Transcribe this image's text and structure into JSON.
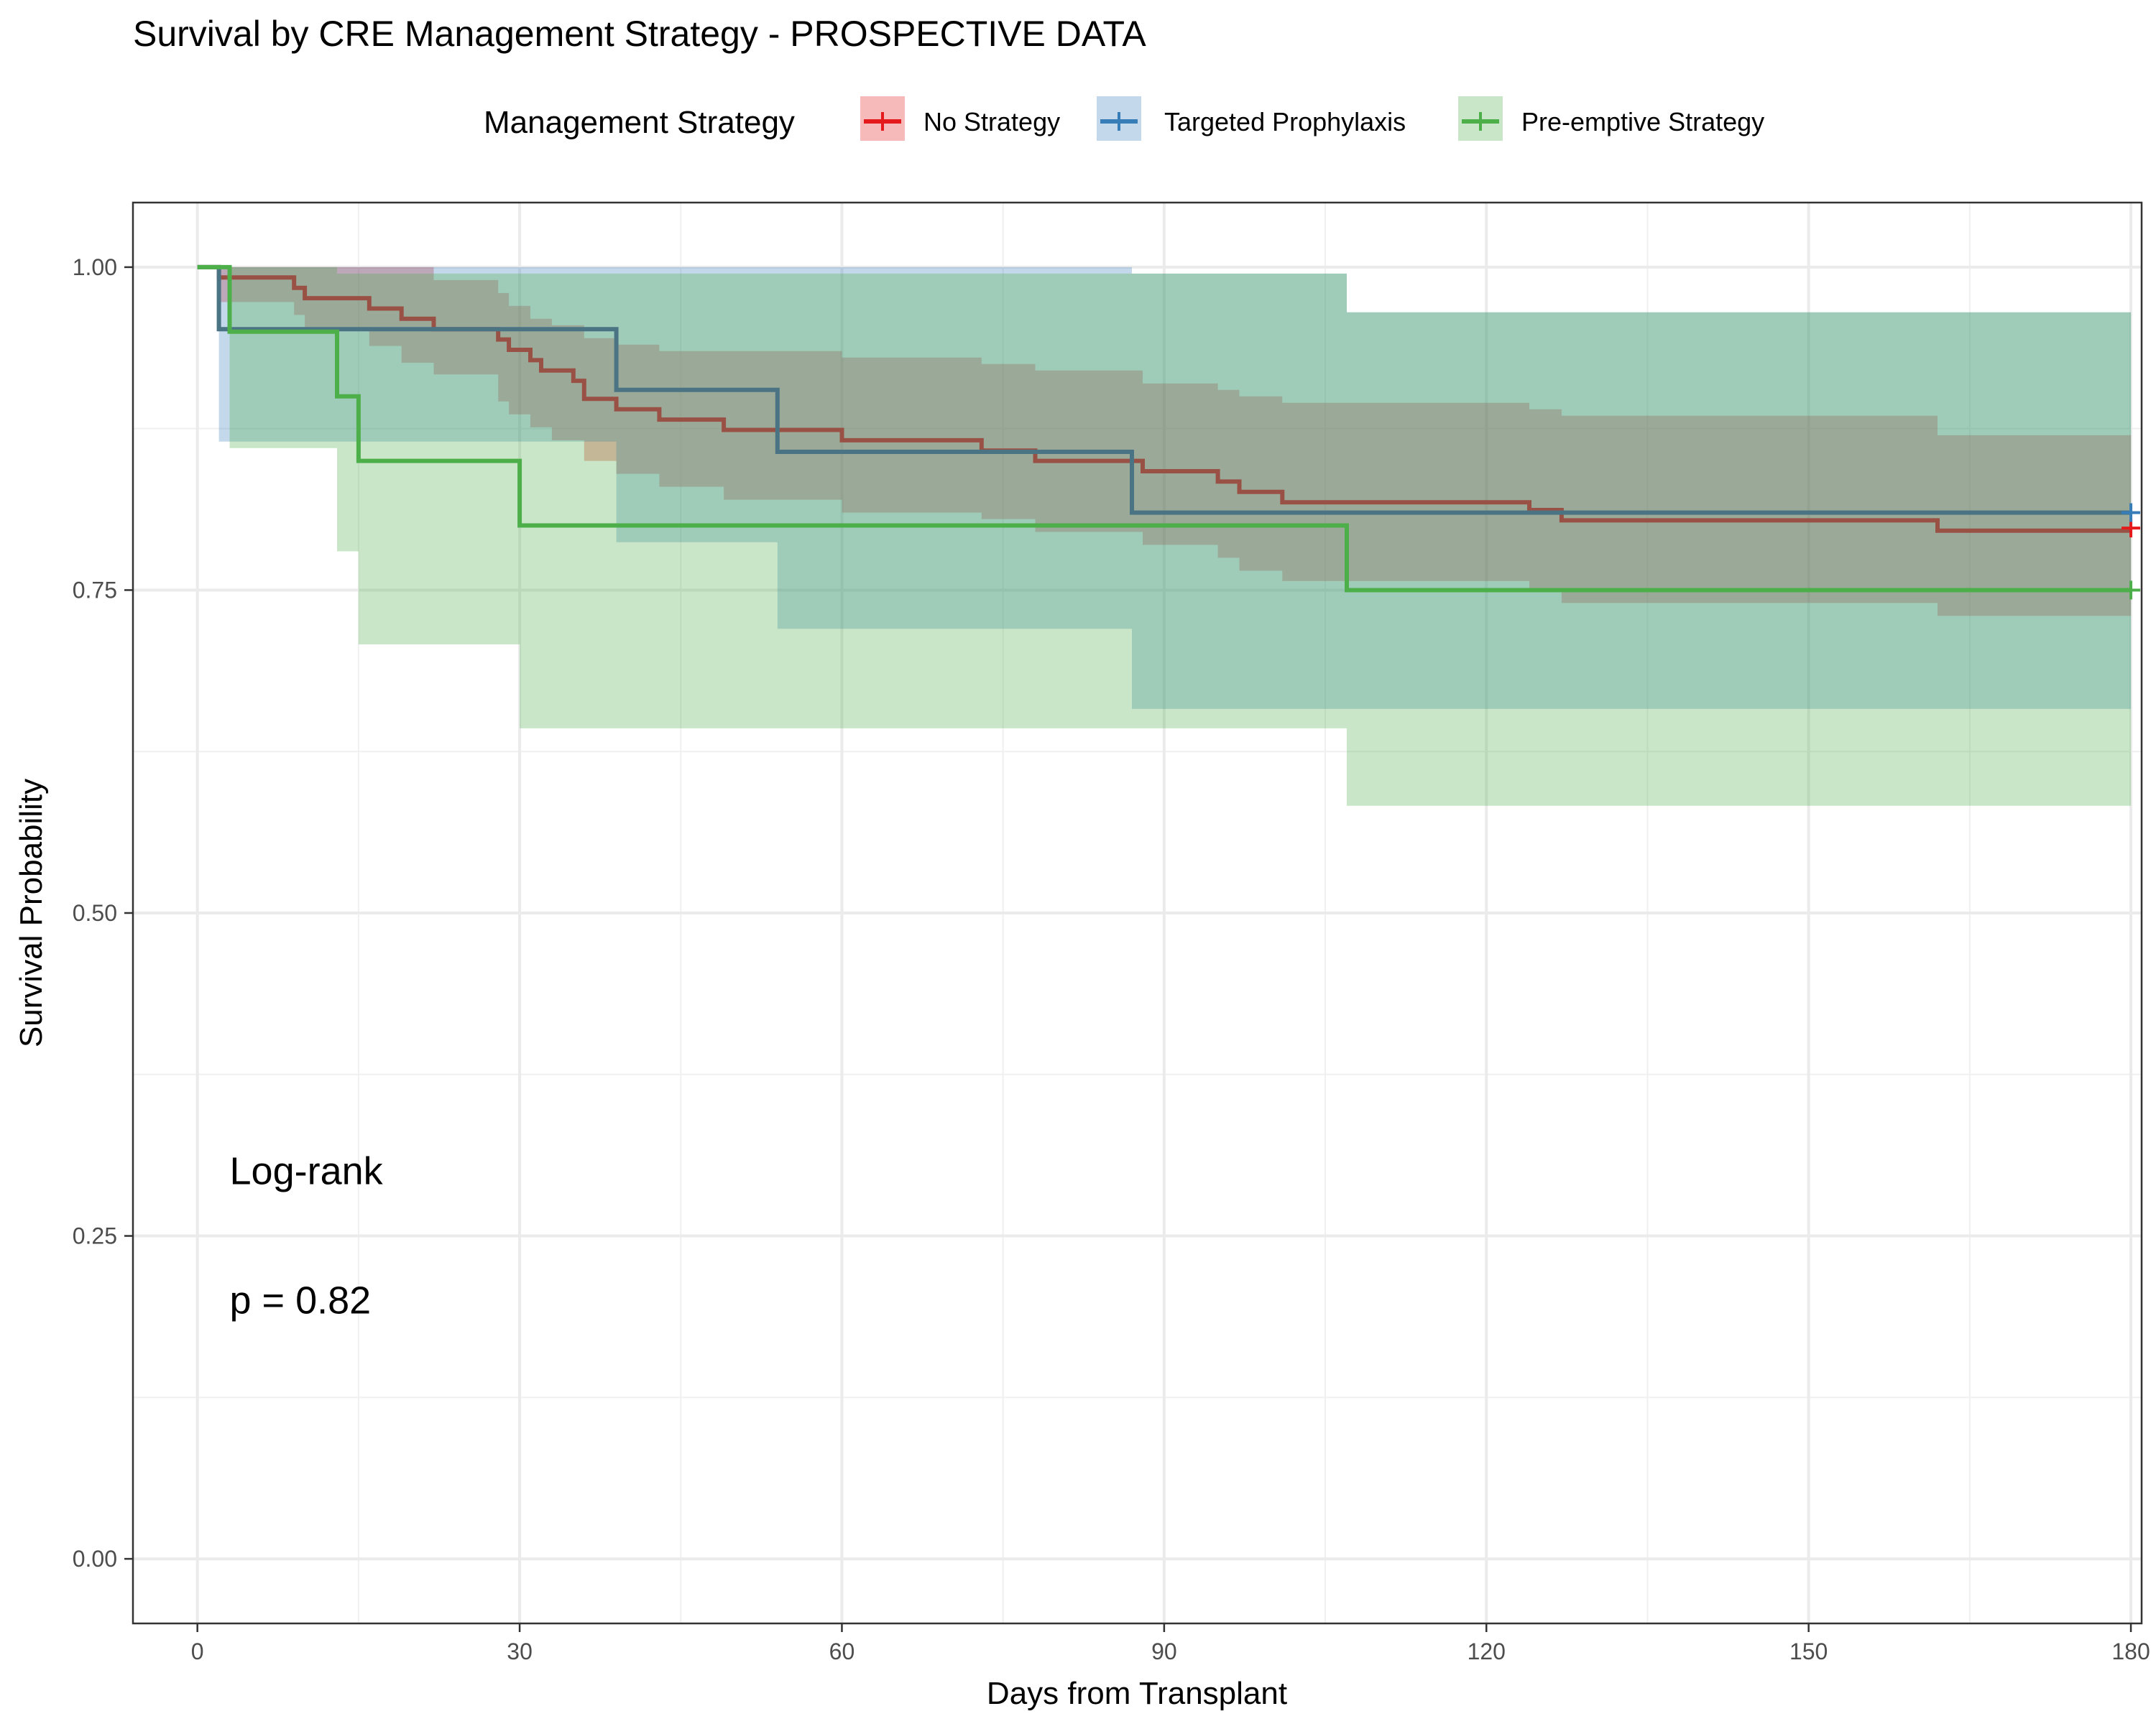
{
  "chart_data": {
    "type": "line",
    "subtype": "kaplan-meier step curves with confidence bands",
    "title": "Survival by CRE Management Strategy - PROSPECTIVE DATA",
    "xlabel": "Days from Transplant",
    "ylabel": "Survival Probability",
    "xlim": [
      -6,
      181
    ],
    "ylim": [
      -0.05,
      1.05
    ],
    "x_ticks": [
      0,
      30,
      60,
      90,
      120,
      150,
      180
    ],
    "x_tick_labels": [
      "0",
      "30",
      "60",
      "90",
      "120",
      "150",
      "180"
    ],
    "y_ticks": [
      0,
      0.25,
      0.5,
      0.75,
      1.0
    ],
    "y_tick_labels": [
      "0.00",
      "0.25",
      "0.50",
      "0.75",
      "1.00"
    ],
    "grid": true,
    "legend": {
      "title": "Management Strategy",
      "position": "top"
    },
    "series": [
      {
        "name": "No Strategy",
        "color": "#E41A1C",
        "line_color": "#9A5145",
        "steps": [
          [
            0,
            1.0
          ],
          [
            2,
            0.992
          ],
          [
            9,
            0.984
          ],
          [
            10,
            0.976
          ],
          [
            16,
            0.968
          ],
          [
            19,
            0.96
          ],
          [
            22,
            0.952
          ],
          [
            28,
            0.944
          ],
          [
            29,
            0.936
          ],
          [
            31,
            0.928
          ],
          [
            32,
            0.92
          ],
          [
            35,
            0.912
          ],
          [
            36,
            0.898
          ],
          [
            39,
            0.89
          ],
          [
            43,
            0.882
          ],
          [
            49,
            0.874
          ],
          [
            55,
            0.874
          ],
          [
            60,
            0.866
          ],
          [
            73,
            0.858
          ],
          [
            78,
            0.85
          ],
          [
            88,
            0.842
          ],
          [
            95,
            0.834
          ],
          [
            97,
            0.826
          ],
          [
            101,
            0.818
          ],
          [
            124,
            0.812
          ],
          [
            127,
            0.804
          ],
          [
            162,
            0.796
          ],
          [
            180,
            0.796
          ]
        ],
        "ci_band": [
          [
            0,
            1.0,
            1.0
          ],
          [
            2,
            0.973,
            1.0
          ],
          [
            9,
            0.963,
            1.0
          ],
          [
            10,
            0.951,
            1.0
          ],
          [
            16,
            0.939,
            1.0
          ],
          [
            19,
            0.926,
            1.0
          ],
          [
            22,
            0.917,
            0.99
          ],
          [
            28,
            0.896,
            0.98
          ],
          [
            29,
            0.886,
            0.97
          ],
          [
            31,
            0.876,
            0.96
          ],
          [
            33,
            0.866,
            0.955
          ],
          [
            36,
            0.85,
            0.945
          ],
          [
            39,
            0.84,
            0.94
          ],
          [
            43,
            0.83,
            0.935
          ],
          [
            49,
            0.82,
            0.935
          ],
          [
            60,
            0.81,
            0.93
          ],
          [
            73,
            0.805,
            0.925
          ],
          [
            78,
            0.795,
            0.92
          ],
          [
            88,
            0.785,
            0.91
          ],
          [
            95,
            0.775,
            0.905
          ],
          [
            97,
            0.765,
            0.9
          ],
          [
            101,
            0.757,
            0.895
          ],
          [
            124,
            0.75,
            0.89
          ],
          [
            127,
            0.74,
            0.885
          ],
          [
            162,
            0.73,
            0.87
          ],
          [
            180,
            0.73,
            0.87
          ]
        ],
        "censored": [
          [
            180,
            0.798
          ]
        ]
      },
      {
        "name": "Targeted Prophylaxis",
        "color": "#377EB8",
        "line_color": "#4A7383",
        "steps": [
          [
            0,
            1.0
          ],
          [
            2,
            0.952
          ],
          [
            39,
            0.905
          ],
          [
            54,
            0.857
          ],
          [
            87,
            0.81
          ],
          [
            180,
            0.81
          ]
        ],
        "ci_band": [
          [
            0,
            1.0,
            1.0
          ],
          [
            2,
            0.865,
            1.0
          ],
          [
            39,
            0.787,
            1.0
          ],
          [
            54,
            0.72,
            1.0
          ],
          [
            87,
            0.658,
            0.995
          ],
          [
            107,
            0.658,
            0.965
          ],
          [
            180,
            0.658,
            0.965
          ]
        ],
        "censored": [
          [
            180,
            0.81
          ]
        ]
      },
      {
        "name": "Pre-emptive Strategy",
        "color": "#4DAF4A",
        "line_color": "#4DAF4A",
        "steps": [
          [
            0,
            1.0
          ],
          [
            3,
            0.95
          ],
          [
            13,
            0.9
          ],
          [
            15,
            0.85
          ],
          [
            30,
            0.8
          ],
          [
            107,
            0.75
          ],
          [
            180,
            0.75
          ]
        ],
        "ci_band": [
          [
            0,
            1.0,
            1.0
          ],
          [
            3,
            0.86,
            1.0
          ],
          [
            13,
            0.78,
            0.995
          ],
          [
            15,
            0.708,
            0.995
          ],
          [
            30,
            0.643,
            0.995
          ],
          [
            107,
            0.583,
            0.965
          ],
          [
            180,
            0.583,
            0.965
          ]
        ],
        "censored": [
          [
            180,
            0.75
          ]
        ]
      }
    ],
    "annotations": [
      {
        "text": "Log-rank",
        "x": 3,
        "y": 0.29
      },
      {
        "text": "p = 0.82",
        "x": 3,
        "y": 0.19
      }
    ]
  }
}
